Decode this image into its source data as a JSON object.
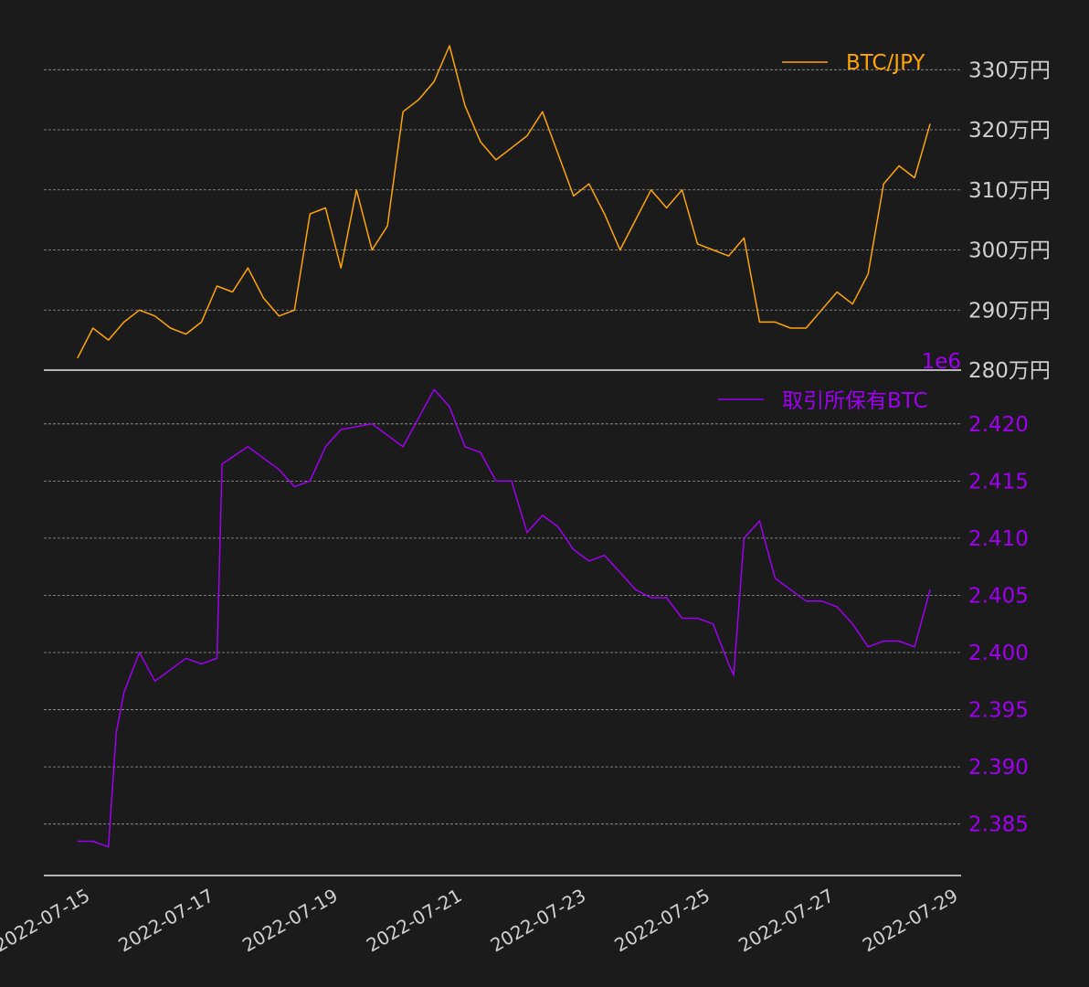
{
  "chart_data": [
    {
      "type": "line",
      "panel": "top",
      "legend_placement": "top-right",
      "grid": true,
      "y_axis_side": "right",
      "ylim": [
        2800000,
        3340000
      ],
      "yticks": [
        2800000,
        2900000,
        3000000,
        3100000,
        3200000,
        3300000
      ],
      "ytick_labels": [
        "280万円",
        "290万円",
        "300万円",
        "310万円",
        "320万円",
        "330万円"
      ],
      "series": [
        {
          "name": "BTC/JPY",
          "color": "#ffa500",
          "x": [
            "2022-07-14 18:00",
            "2022-07-15 00:00",
            "2022-07-15 06:00",
            "2022-07-15 12:00",
            "2022-07-15 18:00",
            "2022-07-16 00:00",
            "2022-07-16 06:00",
            "2022-07-16 12:00",
            "2022-07-16 18:00",
            "2022-07-17 00:00",
            "2022-07-17 06:00",
            "2022-07-17 12:00",
            "2022-07-17 18:00",
            "2022-07-18 00:00",
            "2022-07-18 06:00",
            "2022-07-18 12:00",
            "2022-07-18 18:00",
            "2022-07-19 00:00",
            "2022-07-19 06:00",
            "2022-07-19 12:00",
            "2022-07-19 18:00",
            "2022-07-20 00:00",
            "2022-07-20 06:00",
            "2022-07-20 12:00",
            "2022-07-20 18:00",
            "2022-07-21 00:00",
            "2022-07-21 06:00",
            "2022-07-21 12:00",
            "2022-07-21 18:00",
            "2022-07-22 00:00",
            "2022-07-22 06:00",
            "2022-07-22 12:00",
            "2022-07-22 18:00",
            "2022-07-23 00:00",
            "2022-07-23 06:00",
            "2022-07-23 12:00",
            "2022-07-23 18:00",
            "2022-07-24 00:00",
            "2022-07-24 06:00",
            "2022-07-24 12:00",
            "2022-07-24 18:00",
            "2022-07-25 00:00",
            "2022-07-25 06:00",
            "2022-07-25 12:00",
            "2022-07-25 18:00",
            "2022-07-26 00:00",
            "2022-07-26 06:00",
            "2022-07-26 12:00",
            "2022-07-26 18:00",
            "2022-07-27 00:00",
            "2022-07-27 06:00",
            "2022-07-27 12:00",
            "2022-07-27 18:00",
            "2022-07-28 00:00",
            "2022-07-28 06:00",
            "2022-07-28 12:00"
          ],
          "values": [
            2820000,
            2870000,
            2850000,
            2880000,
            2900000,
            2890000,
            2870000,
            2860000,
            2880000,
            2940000,
            2930000,
            2970000,
            2920000,
            2890000,
            2900000,
            3060000,
            3070000,
            2970000,
            3100000,
            3000000,
            3040000,
            3230000,
            3250000,
            3280000,
            3340000,
            3240000,
            3180000,
            3150000,
            3170000,
            3190000,
            3230000,
            3160000,
            3090000,
            3110000,
            3060000,
            3000000,
            3050000,
            3100000,
            3070000,
            3100000,
            3010000,
            3000000,
            2990000,
            3020000,
            2880000,
            2880000,
            2870000,
            2870000,
            2900000,
            2930000,
            2910000,
            2960000,
            3110000,
            3140000,
            3120000,
            3210000
          ]
        }
      ]
    },
    {
      "type": "line",
      "panel": "bottom",
      "legend_placement": "top-right",
      "grid": true,
      "y_axis_side": "right",
      "offset_label": "1e6",
      "ylim": [
        2.3805,
        2.4235
      ],
      "yticks": [
        2.385,
        2.39,
        2.395,
        2.4,
        2.405,
        2.41,
        2.415,
        2.42
      ],
      "ytick_labels": [
        "2.385",
        "2.390",
        "2.395",
        "2.400",
        "2.405",
        "2.410",
        "2.415",
        "2.420"
      ],
      "x_tick_labels": [
        "2022-07-15",
        "2022-07-17",
        "2022-07-19",
        "2022-07-21",
        "2022-07-23",
        "2022-07-25",
        "2022-07-27",
        "2022-07-29"
      ],
      "series": [
        {
          "name": "取引所保有BTC",
          "color": "#a000f0",
          "x": [
            "2022-07-14 18:00",
            "2022-07-15 00:00",
            "2022-07-15 06:00",
            "2022-07-15 09:00",
            "2022-07-15 12:00",
            "2022-07-15 18:00",
            "2022-07-16 00:00",
            "2022-07-16 06:00",
            "2022-07-16 12:00",
            "2022-07-16 18:00",
            "2022-07-17 00:00",
            "2022-07-17 02:00",
            "2022-07-17 12:00",
            "2022-07-18 00:00",
            "2022-07-18 06:00",
            "2022-07-18 12:00",
            "2022-07-18 18:00",
            "2022-07-19 00:00",
            "2022-07-19 12:00",
            "2022-07-20 00:00",
            "2022-07-20 12:00",
            "2022-07-20 18:00",
            "2022-07-21 00:00",
            "2022-07-21 06:00",
            "2022-07-21 12:00",
            "2022-07-21 18:00",
            "2022-07-22 00:00",
            "2022-07-22 06:00",
            "2022-07-22 12:00",
            "2022-07-22 18:00",
            "2022-07-23 00:00",
            "2022-07-23 06:00",
            "2022-07-23 12:00",
            "2022-07-23 18:00",
            "2022-07-24 00:00",
            "2022-07-24 06:00",
            "2022-07-24 12:00",
            "2022-07-24 18:00",
            "2022-07-25 00:00",
            "2022-07-25 06:00",
            "2022-07-25 08:00",
            "2022-07-25 12:00",
            "2022-07-25 18:00",
            "2022-07-26 00:00",
            "2022-07-26 06:00",
            "2022-07-26 12:00",
            "2022-07-26 18:00",
            "2022-07-27 00:00",
            "2022-07-27 06:00",
            "2022-07-27 12:00",
            "2022-07-27 18:00",
            "2022-07-28 00:00",
            "2022-07-28 06:00",
            "2022-07-28 12:00"
          ],
          "values": [
            2.3835,
            2.3835,
            2.383,
            2.393,
            2.3965,
            2.4,
            2.3975,
            2.3985,
            2.3995,
            2.399,
            2.3995,
            2.4165,
            2.418,
            2.416,
            2.4145,
            2.415,
            2.418,
            2.4195,
            2.42,
            2.418,
            2.423,
            2.4215,
            2.418,
            2.4175,
            2.415,
            2.415,
            2.4105,
            2.412,
            2.411,
            2.409,
            2.408,
            2.4085,
            2.407,
            2.4055,
            2.4048,
            2.4048,
            2.403,
            2.403,
            2.4025,
            2.399,
            2.398,
            2.41,
            2.4115,
            2.4065,
            2.4055,
            2.4045,
            2.4045,
            2.404,
            2.4025,
            2.4005,
            2.401,
            2.401,
            2.4005,
            2.4055
          ]
        }
      ]
    }
  ]
}
